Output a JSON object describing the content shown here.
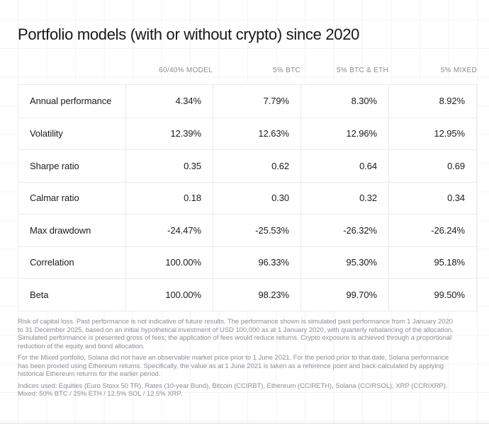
{
  "chart_data": {
    "type": "table",
    "title": "Portfolio models (with or without crypto) since 2020",
    "column_headers": [
      "60/40% MODEL",
      "5% BTC",
      "5% BTC & ETH",
      "5% MIXED"
    ],
    "rows": [
      {
        "label": "Annual performance",
        "values": [
          "4.34%",
          "7.79%",
          "8.30%",
          "8.92%"
        ]
      },
      {
        "label": "Volatility",
        "values": [
          "12.39%",
          "12.63%",
          "12.96%",
          "12.95%"
        ]
      },
      {
        "label": "Sharpe ratio",
        "values": [
          "0.35",
          "0.62",
          "0.64",
          "0.69"
        ]
      },
      {
        "label": "Calmar ratio",
        "values": [
          "0.18",
          "0.30",
          "0.32",
          "0.34"
        ]
      },
      {
        "label": "Max drawdown",
        "values": [
          "-24.47%",
          "-25.53%",
          "-26.32%",
          "-26.24%"
        ]
      },
      {
        "label": "Correlation",
        "values": [
          "100.00%",
          "96.33%",
          "95.30%",
          "95.18%"
        ]
      },
      {
        "label": "Beta",
        "values": [
          "100.00%",
          "98.23%",
          "99.70%",
          "99.50%"
        ]
      }
    ],
    "notes": [
      "Risk of capital loss. Past performance is not indicative of future results. The performance shown is simulated past performance from 1 January 2020 to 31 December 2025, based on an initial hypothetical investment of USD 100,000 as at 1 January 2020, with quarterly rebalancing of the allocation. Simulated performance is presented gross of fees; the application of fees would reduce returns. Crypto exposure is achieved through a proportional reduction of the equity and bond allocation.",
      "For the Mixed portfolio, Solana did not have an observable market price prior to 1 June 2021. For the period prior to that date, Solana performance has been proxied using Ethereum returns. Specifically, the value as at 1 June 2021 is taken as a reference point and back-calculated by applying historical Ethereum returns for the earlier period.",
      "Indices used: Equities (Euro Stoxx 50 TR), Rates (10-year Bund), Bitcoin (CCIRBT), Ethereum (CCIRETH), Solana (CCIRSOL), XRP (CCRIXRP). Mixed: 50% BTC / 25% ETH / 12.5% SOL / 12.5% XRP.",
      "Layout hints: design grid background, header row right-aligned to column edges, no legend"
    ]
  },
  "colors": {
    "background": "#ffffff",
    "grid_line": "#f3f3f6",
    "table_border": "#ebebee",
    "title_text": "#17171a",
    "body_text": "#1c1c1f",
    "column_header_text": "#8b8b92",
    "footnote_text": "#8e8e96"
  }
}
